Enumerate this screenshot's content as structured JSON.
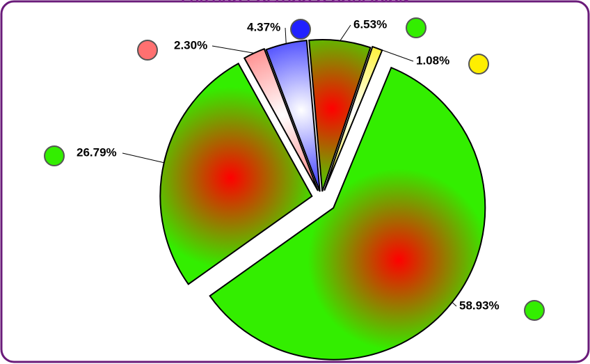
{
  "chart_data": {
    "type": "pie",
    "title": "PARTIDO POLÍTICO O COALICIÓN",
    "values": [
      6.53,
      1.08,
      58.93,
      26.79,
      2.3,
      4.37
    ],
    "value_labels": [
      "6.53%",
      "1.08%",
      "58.93%",
      "26.79%",
      "2.30%",
      "4.37%"
    ],
    "colors": [
      "#33ee00",
      "#ffee00",
      "#33ee00",
      "#33ee00",
      "#ff7070",
      "#2020ff"
    ]
  }
}
